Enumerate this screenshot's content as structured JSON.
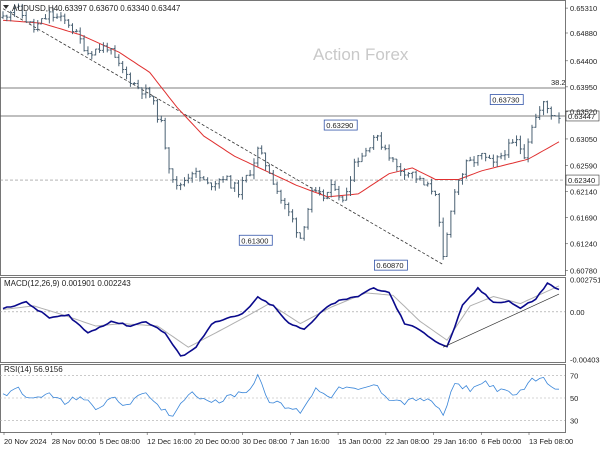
{
  "chart_data": [
    {
      "type": "candlestick",
      "title": "AUDUSD,H4",
      "ohlc_header": "0.63397 0.63670 0.63340 0.63447",
      "watermark": "Action Forex",
      "ylim": [
        0.607,
        0.6545
      ],
      "y_ticks": [
        "0.65310",
        "0.64880",
        "0.64400",
        "0.63950",
        "0.63520",
        "0.63050",
        "0.62590",
        "0.62140",
        "0.61690",
        "0.61240",
        "0.60780"
      ],
      "x_tick_labels": [
        "20 Nov 2024",
        "28 Nov 00:00",
        "5 Dec 08:00",
        "12 Dec 16:00",
        "20 Dec 00:00",
        "30 Dec 08:00",
        "7 Jan 16:00",
        "15 Jan 00:00",
        "22 Jan 08:00",
        "29 Jan 16:00",
        "6 Feb 00:00",
        "13 Feb 08:00"
      ],
      "anchors": [
        {
          "i": 0,
          "v": 0.6515
        },
        {
          "i": 3,
          "v": 0.6535
        },
        {
          "i": 8,
          "v": 0.6495
        },
        {
          "i": 12,
          "v": 0.652
        },
        {
          "i": 17,
          "v": 0.6505
        },
        {
          "i": 22,
          "v": 0.6455
        },
        {
          "i": 27,
          "v": 0.6465
        },
        {
          "i": 30,
          "v": 0.643
        },
        {
          "i": 34,
          "v": 0.64
        },
        {
          "i": 38,
          "v": 0.638
        },
        {
          "i": 41,
          "v": 0.633
        },
        {
          "i": 43,
          "v": 0.626
        },
        {
          "i": 45,
          "v": 0.622
        },
        {
          "i": 49,
          "v": 0.625
        },
        {
          "i": 53,
          "v": 0.6225
        },
        {
          "i": 57,
          "v": 0.624
        },
        {
          "i": 61,
          "v": 0.6215
        },
        {
          "i": 64,
          "v": 0.625
        },
        {
          "i": 66,
          "v": 0.6285
        },
        {
          "i": 69,
          "v": 0.625
        },
        {
          "i": 72,
          "v": 0.62
        },
        {
          "i": 75,
          "v": 0.6165
        },
        {
          "i": 77,
          "v": 0.6135
        },
        {
          "i": 80,
          "v": 0.621
        },
        {
          "i": 83,
          "v": 0.6205
        },
        {
          "i": 86,
          "v": 0.6225
        },
        {
          "i": 88,
          "v": 0.6195
        },
        {
          "i": 91,
          "v": 0.6265
        },
        {
          "i": 94,
          "v": 0.6285
        },
        {
          "i": 96,
          "v": 0.631
        },
        {
          "i": 99,
          "v": 0.629
        },
        {
          "i": 102,
          "v": 0.6255
        },
        {
          "i": 106,
          "v": 0.6245
        },
        {
          "i": 109,
          "v": 0.6225
        },
        {
          "i": 112,
          "v": 0.6215
        },
        {
          "i": 114,
          "v": 0.6095
        },
        {
          "i": 117,
          "v": 0.622
        },
        {
          "i": 120,
          "v": 0.626
        },
        {
          "i": 124,
          "v": 0.6275
        },
        {
          "i": 127,
          "v": 0.626
        },
        {
          "i": 130,
          "v": 0.6285
        },
        {
          "i": 133,
          "v": 0.63
        },
        {
          "i": 135,
          "v": 0.628
        },
        {
          "i": 137,
          "v": 0.633
        },
        {
          "i": 140,
          "v": 0.6365
        },
        {
          "i": 142,
          "v": 0.635
        },
        {
          "i": 144,
          "v": 0.6345
        }
      ],
      "ma_anchors": [
        {
          "i": 0,
          "v": 0.651
        },
        {
          "i": 10,
          "v": 0.6505
        },
        {
          "i": 20,
          "v": 0.6485
        },
        {
          "i": 30,
          "v": 0.6455
        },
        {
          "i": 38,
          "v": 0.642
        },
        {
          "i": 45,
          "v": 0.636
        },
        {
          "i": 52,
          "v": 0.631
        },
        {
          "i": 60,
          "v": 0.6275
        },
        {
          "i": 68,
          "v": 0.625
        },
        {
          "i": 76,
          "v": 0.6225
        },
        {
          "i": 84,
          "v": 0.6205
        },
        {
          "i": 92,
          "v": 0.621
        },
        {
          "i": 100,
          "v": 0.6245
        },
        {
          "i": 106,
          "v": 0.6255
        },
        {
          "i": 112,
          "v": 0.6235
        },
        {
          "i": 118,
          "v": 0.6235
        },
        {
          "i": 124,
          "v": 0.625
        },
        {
          "i": 130,
          "v": 0.626
        },
        {
          "i": 136,
          "v": 0.627
        },
        {
          "i": 144,
          "v": 0.63
        }
      ],
      "horizontal_levels": [
        {
          "value": 0.6393,
          "label": "38.2",
          "style": "solid"
        },
        {
          "value": 0.63447,
          "style": "solid"
        },
        {
          "value": 0.6234,
          "style": "dashed"
        }
      ],
      "trendlines": [
        {
          "from": {
            "i": 0,
            "v": 0.653
          },
          "to": {
            "i": 114,
            "v": 0.6088
          },
          "style": "dashed"
        }
      ],
      "price_labels": [
        {
          "text": "0.63730",
          "i": 135,
          "v": 0.6373
        },
        {
          "text": "0.63290",
          "i": 92,
          "v": 0.6329
        },
        {
          "text": "0.61300",
          "i": 70,
          "v": 0.613
        },
        {
          "text": "0.60870",
          "i": 105,
          "v": 0.6087
        }
      ],
      "current_labels": [
        {
          "text": "0.63447",
          "v": 0.63447
        },
        {
          "text": "0.62340",
          "v": 0.6234
        }
      ],
      "colors": {
        "candles": "#4a6173",
        "ma": "#e03030",
        "grid": "#b0b0b0"
      }
    },
    {
      "type": "line",
      "title": "MACD(12,26,9) 0.001901 0.002243",
      "ylim": [
        -0.00425,
        0.00295
      ],
      "y_ticks": [
        "0.002751",
        "0.00",
        "-0.004038"
      ],
      "main_anchors": [
        {
          "i": 0,
          "v": 0.0003
        },
        {
          "i": 6,
          "v": 0.0008
        },
        {
          "i": 12,
          "v": -0.0005
        },
        {
          "i": 17,
          "v": -0.0003
        },
        {
          "i": 22,
          "v": -0.0018
        },
        {
          "i": 28,
          "v": -0.0008
        },
        {
          "i": 33,
          "v": -0.0012
        },
        {
          "i": 37,
          "v": -0.0008
        },
        {
          "i": 42,
          "v": -0.0018
        },
        {
          "i": 46,
          "v": -0.0038
        },
        {
          "i": 50,
          "v": -0.003
        },
        {
          "i": 54,
          "v": -0.001
        },
        {
          "i": 58,
          "v": -0.0006
        },
        {
          "i": 62,
          "v": -0.0002
        },
        {
          "i": 66,
          "v": 0.0012
        },
        {
          "i": 70,
          "v": 0.0005
        },
        {
          "i": 74,
          "v": -0.001
        },
        {
          "i": 78,
          "v": -0.0015
        },
        {
          "i": 83,
          "v": 0.0002
        },
        {
          "i": 87,
          "v": 0.001
        },
        {
          "i": 91,
          "v": 0.0012
        },
        {
          "i": 96,
          "v": 0.002
        },
        {
          "i": 100,
          "v": 0.0016
        },
        {
          "i": 104,
          "v": -0.001
        },
        {
          "i": 108,
          "v": -0.0015
        },
        {
          "i": 112,
          "v": -0.0025
        },
        {
          "i": 115,
          "v": -0.003
        },
        {
          "i": 119,
          "v": 0.0005
        },
        {
          "i": 123,
          "v": 0.002
        },
        {
          "i": 127,
          "v": 0.0008
        },
        {
          "i": 131,
          "v": 0.0009
        },
        {
          "i": 134,
          "v": 0.0003
        },
        {
          "i": 138,
          "v": 0.0011
        },
        {
          "i": 141,
          "v": 0.0024
        },
        {
          "i": 144,
          "v": 0.0019
        }
      ],
      "signal_anchors": [
        {
          "i": 0,
          "v": 0.0002
        },
        {
          "i": 8,
          "v": 0.0005
        },
        {
          "i": 15,
          "v": -0.0002
        },
        {
          "i": 24,
          "v": -0.0012
        },
        {
          "i": 31,
          "v": -0.001
        },
        {
          "i": 40,
          "v": -0.0012
        },
        {
          "i": 48,
          "v": -0.003
        },
        {
          "i": 55,
          "v": -0.0018
        },
        {
          "i": 63,
          "v": -0.0004
        },
        {
          "i": 69,
          "v": 0.0007
        },
        {
          "i": 77,
          "v": -0.001
        },
        {
          "i": 85,
          "v": 0.0004
        },
        {
          "i": 94,
          "v": 0.0016
        },
        {
          "i": 101,
          "v": 0.0014
        },
        {
          "i": 108,
          "v": -0.0008
        },
        {
          "i": 115,
          "v": -0.0024
        },
        {
          "i": 121,
          "v": 0.0005
        },
        {
          "i": 127,
          "v": 0.0013
        },
        {
          "i": 134,
          "v": 0.0007
        },
        {
          "i": 144,
          "v": 0.0022
        }
      ],
      "zero_line": 0.0,
      "trendlines": [
        {
          "from": {
            "i": 114,
            "v": -0.003
          },
          "to": {
            "i": 144,
            "v": 0.0015
          },
          "style": "solid"
        }
      ],
      "colors": {
        "main": "#0a0a8c",
        "signal": "#b0b0b0"
      }
    },
    {
      "type": "line",
      "title": "RSI(14) 56.9156",
      "ylim": [
        20,
        80
      ],
      "y_ticks": [
        "70",
        "50",
        "30"
      ],
      "anchors": [
        {
          "i": 0,
          "v": 52
        },
        {
          "i": 4,
          "v": 58
        },
        {
          "i": 8,
          "v": 48
        },
        {
          "i": 12,
          "v": 54
        },
        {
          "i": 16,
          "v": 45
        },
        {
          "i": 20,
          "v": 52
        },
        {
          "i": 24,
          "v": 40
        },
        {
          "i": 28,
          "v": 50
        },
        {
          "i": 32,
          "v": 44
        },
        {
          "i": 36,
          "v": 56
        },
        {
          "i": 40,
          "v": 42
        },
        {
          "i": 44,
          "v": 35
        },
        {
          "i": 48,
          "v": 55
        },
        {
          "i": 52,
          "v": 50
        },
        {
          "i": 56,
          "v": 47
        },
        {
          "i": 60,
          "v": 53
        },
        {
          "i": 64,
          "v": 58
        },
        {
          "i": 66,
          "v": 70
        },
        {
          "i": 69,
          "v": 48
        },
        {
          "i": 73,
          "v": 42
        },
        {
          "i": 77,
          "v": 38
        },
        {
          "i": 81,
          "v": 58
        },
        {
          "i": 85,
          "v": 52
        },
        {
          "i": 88,
          "v": 60
        },
        {
          "i": 92,
          "v": 56
        },
        {
          "i": 96,
          "v": 62
        },
        {
          "i": 100,
          "v": 50
        },
        {
          "i": 104,
          "v": 46
        },
        {
          "i": 108,
          "v": 50
        },
        {
          "i": 112,
          "v": 44
        },
        {
          "i": 114,
          "v": 35
        },
        {
          "i": 117,
          "v": 62
        },
        {
          "i": 121,
          "v": 58
        },
        {
          "i": 125,
          "v": 64
        },
        {
          "i": 129,
          "v": 56
        },
        {
          "i": 133,
          "v": 52
        },
        {
          "i": 136,
          "v": 64
        },
        {
          "i": 139,
          "v": 68
        },
        {
          "i": 142,
          "v": 62
        },
        {
          "i": 144,
          "v": 57
        }
      ],
      "levels": [
        70,
        50,
        30
      ],
      "colors": {
        "line": "#3a86d9"
      }
    }
  ]
}
